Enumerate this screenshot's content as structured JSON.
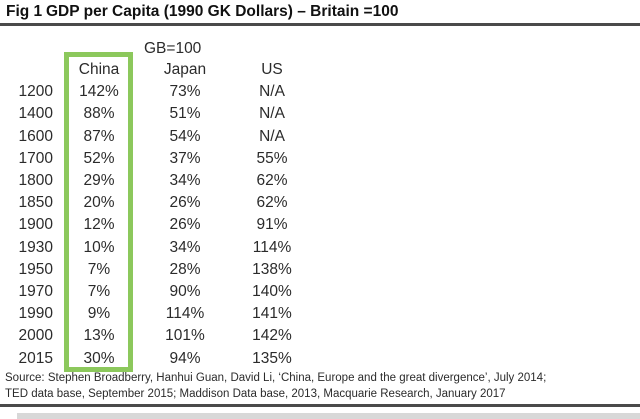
{
  "figure": {
    "label": "Fig 1",
    "title": "GDP per Capita (1990 GK Dollars) – Britain =100"
  },
  "table": {
    "scale_note": "GB=100",
    "highlighted_column": "China",
    "highlight_color": "#8cc85c"
  },
  "chart_data": {
    "type": "table",
    "title": "GDP per Capita (1990 GK Dollars) – Britain =100",
    "subtitle": "GB=100",
    "categories": [
      "1200",
      "1400",
      "1600",
      "1700",
      "1800",
      "1850",
      "1900",
      "1930",
      "1950",
      "1970",
      "1990",
      "2000",
      "2015"
    ],
    "series": [
      {
        "name": "China",
        "values": [
          "142%",
          "88%",
          "87%",
          "52%",
          "29%",
          "20%",
          "12%",
          "10%",
          "7%",
          "7%",
          "9%",
          "13%",
          "30%"
        ]
      },
      {
        "name": "Japan",
        "values": [
          "73%",
          "51%",
          "54%",
          "37%",
          "34%",
          "26%",
          "26%",
          "34%",
          "28%",
          "90%",
          "114%",
          "101%",
          "94%"
        ]
      },
      {
        "name": "US",
        "values": [
          "N/A",
          "N/A",
          "N/A",
          "55%",
          "62%",
          "62%",
          "91%",
          "114%",
          "138%",
          "140%",
          "141%",
          "142%",
          "135%"
        ]
      }
    ],
    "annotations": [
      "China column outlined with green highlight box"
    ]
  },
  "source": {
    "line1": "Source: Stephen Broadberry, Hanhui Guan, David Li, ‘China, Europe and the great divergence’, July 2014;",
    "line2": "TED data base, September 2015; Maddison Data base, 2013, Macquarie Research, January 2017"
  }
}
